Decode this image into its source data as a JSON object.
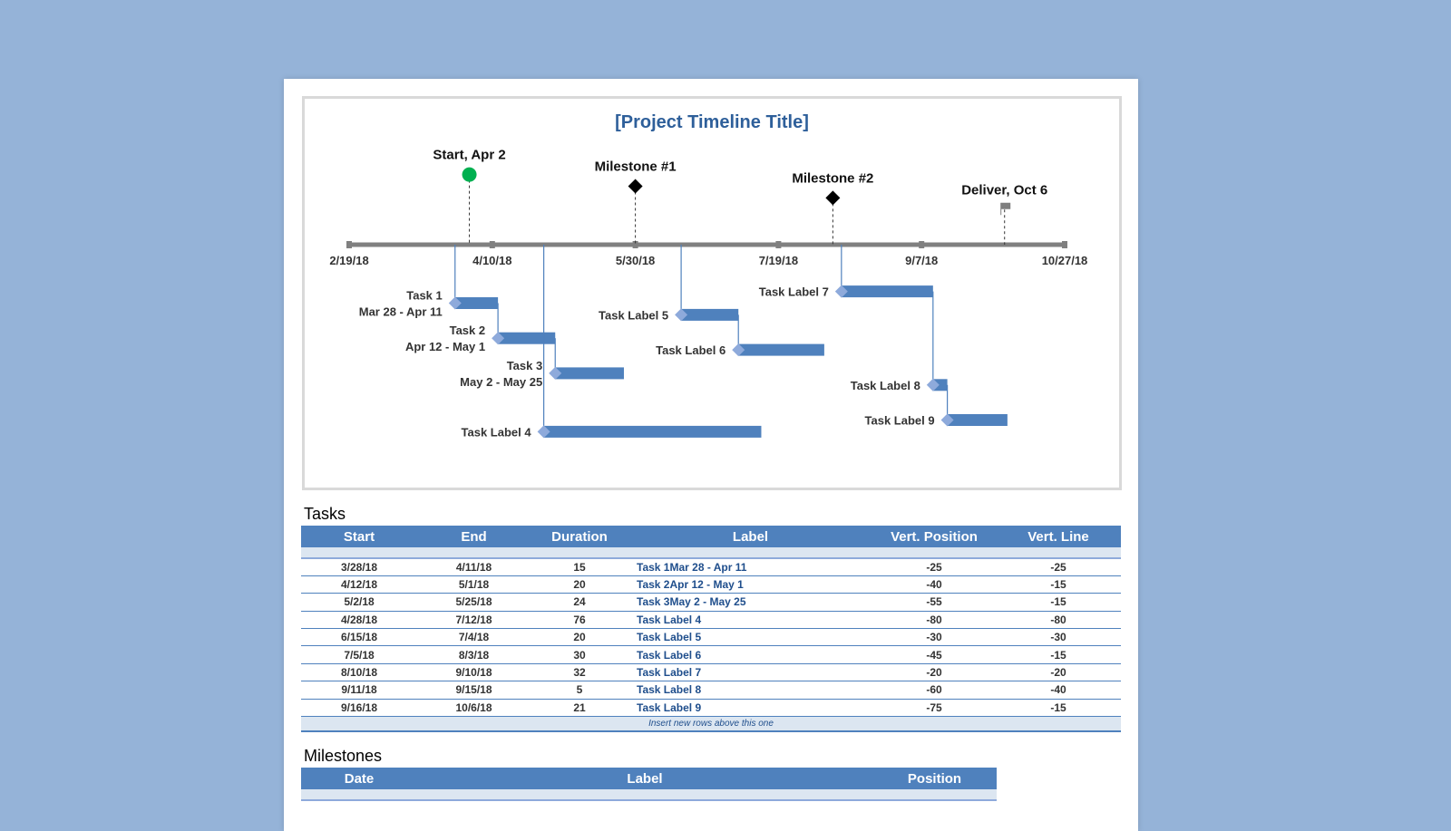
{
  "chart_data": {
    "type": "timeline",
    "title": "[Project Timeline Title]",
    "axis": {
      "start": "2018-02-19",
      "end": "2018-10-27",
      "ticks": [
        "2/19/18",
        "4/10/18",
        "5/30/18",
        "7/19/18",
        "9/7/18",
        "10/27/18"
      ],
      "tick_dates": [
        "2018-02-19",
        "2018-04-10",
        "2018-05-30",
        "2018-07-19",
        "2018-09-07",
        "2018-10-27"
      ]
    },
    "milestones": [
      {
        "date": "2018-04-02",
        "label": "Start, Apr 2",
        "position": 30,
        "marker": "circle",
        "color": "#00b050"
      },
      {
        "date": "2018-05-30",
        "label": "Milestone #1",
        "position": 25,
        "marker": "diamond",
        "color": "#000000"
      },
      {
        "date": "2018-08-07",
        "label": "Milestone #2",
        "position": 20,
        "marker": "diamond",
        "color": "#000000"
      },
      {
        "date": "2018-10-06",
        "label": "Deliver, Oct 6",
        "position": 15,
        "marker": "flag",
        "color": "#7f7f7f"
      }
    ],
    "tasks": [
      {
        "start": "2018-03-28",
        "duration": 15,
        "lines": [
          "Task 1",
          "Mar 28 - Apr 11"
        ],
        "position": -25,
        "vline": -25
      },
      {
        "start": "2018-04-12",
        "duration": 20,
        "lines": [
          "Task 2",
          "Apr 12 - May 1"
        ],
        "position": -40,
        "vline": -15
      },
      {
        "start": "2018-05-02",
        "duration": 24,
        "lines": [
          "Task 3",
          "May 2 - May 25"
        ],
        "position": -55,
        "vline": -15
      },
      {
        "start": "2018-04-28",
        "duration": 76,
        "lines": [
          "Task Label 4"
        ],
        "position": -80,
        "vline": -80
      },
      {
        "start": "2018-06-15",
        "duration": 20,
        "lines": [
          "Task Label 5"
        ],
        "position": -30,
        "vline": -30
      },
      {
        "start": "2018-07-05",
        "duration": 30,
        "lines": [
          "Task Label 6"
        ],
        "position": -45,
        "vline": -15
      },
      {
        "start": "2018-08-10",
        "duration": 32,
        "lines": [
          "Task Label 7"
        ],
        "position": -20,
        "vline": -20
      },
      {
        "start": "2018-09-11",
        "duration": 5,
        "lines": [
          "Task Label 8"
        ],
        "position": -60,
        "vline": -40
      },
      {
        "start": "2018-09-16",
        "duration": 21,
        "lines": [
          "Task Label 9"
        ],
        "position": -75,
        "vline": -15
      }
    ],
    "colors": {
      "bar": "#4f81bd",
      "axis": "#808080"
    }
  },
  "tasks_section": {
    "heading": "Tasks",
    "headers": [
      "Start",
      "End",
      "Duration",
      "Label",
      "Vert. Position",
      "Vert. Line"
    ],
    "rows": [
      [
        "3/28/18",
        "4/11/18",
        "15",
        "Task 1Mar 28 - Apr 11",
        "-25",
        "-25"
      ],
      [
        "4/12/18",
        "5/1/18",
        "20",
        "Task 2Apr 12 - May 1",
        "-40",
        "-15"
      ],
      [
        "5/2/18",
        "5/25/18",
        "24",
        "Task 3May 2 - May 25",
        "-55",
        "-15"
      ],
      [
        "4/28/18",
        "7/12/18",
        "76",
        "Task Label 4",
        "-80",
        "-80"
      ],
      [
        "6/15/18",
        "7/4/18",
        "20",
        "Task Label 5",
        "-30",
        "-30"
      ],
      [
        "7/5/18",
        "8/3/18",
        "30",
        "Task Label 6",
        "-45",
        "-15"
      ],
      [
        "8/10/18",
        "9/10/18",
        "32",
        "Task Label 7",
        "-20",
        "-20"
      ],
      [
        "9/11/18",
        "9/15/18",
        "5",
        "Task Label 8",
        "-60",
        "-40"
      ],
      [
        "9/16/18",
        "10/6/18",
        "21",
        "Task Label 9",
        "-75",
        "-15"
      ]
    ],
    "footer": "Insert new rows above this one"
  },
  "milestones_section": {
    "heading": "Milestones",
    "headers": [
      "Date",
      "Label",
      "Position"
    ]
  }
}
